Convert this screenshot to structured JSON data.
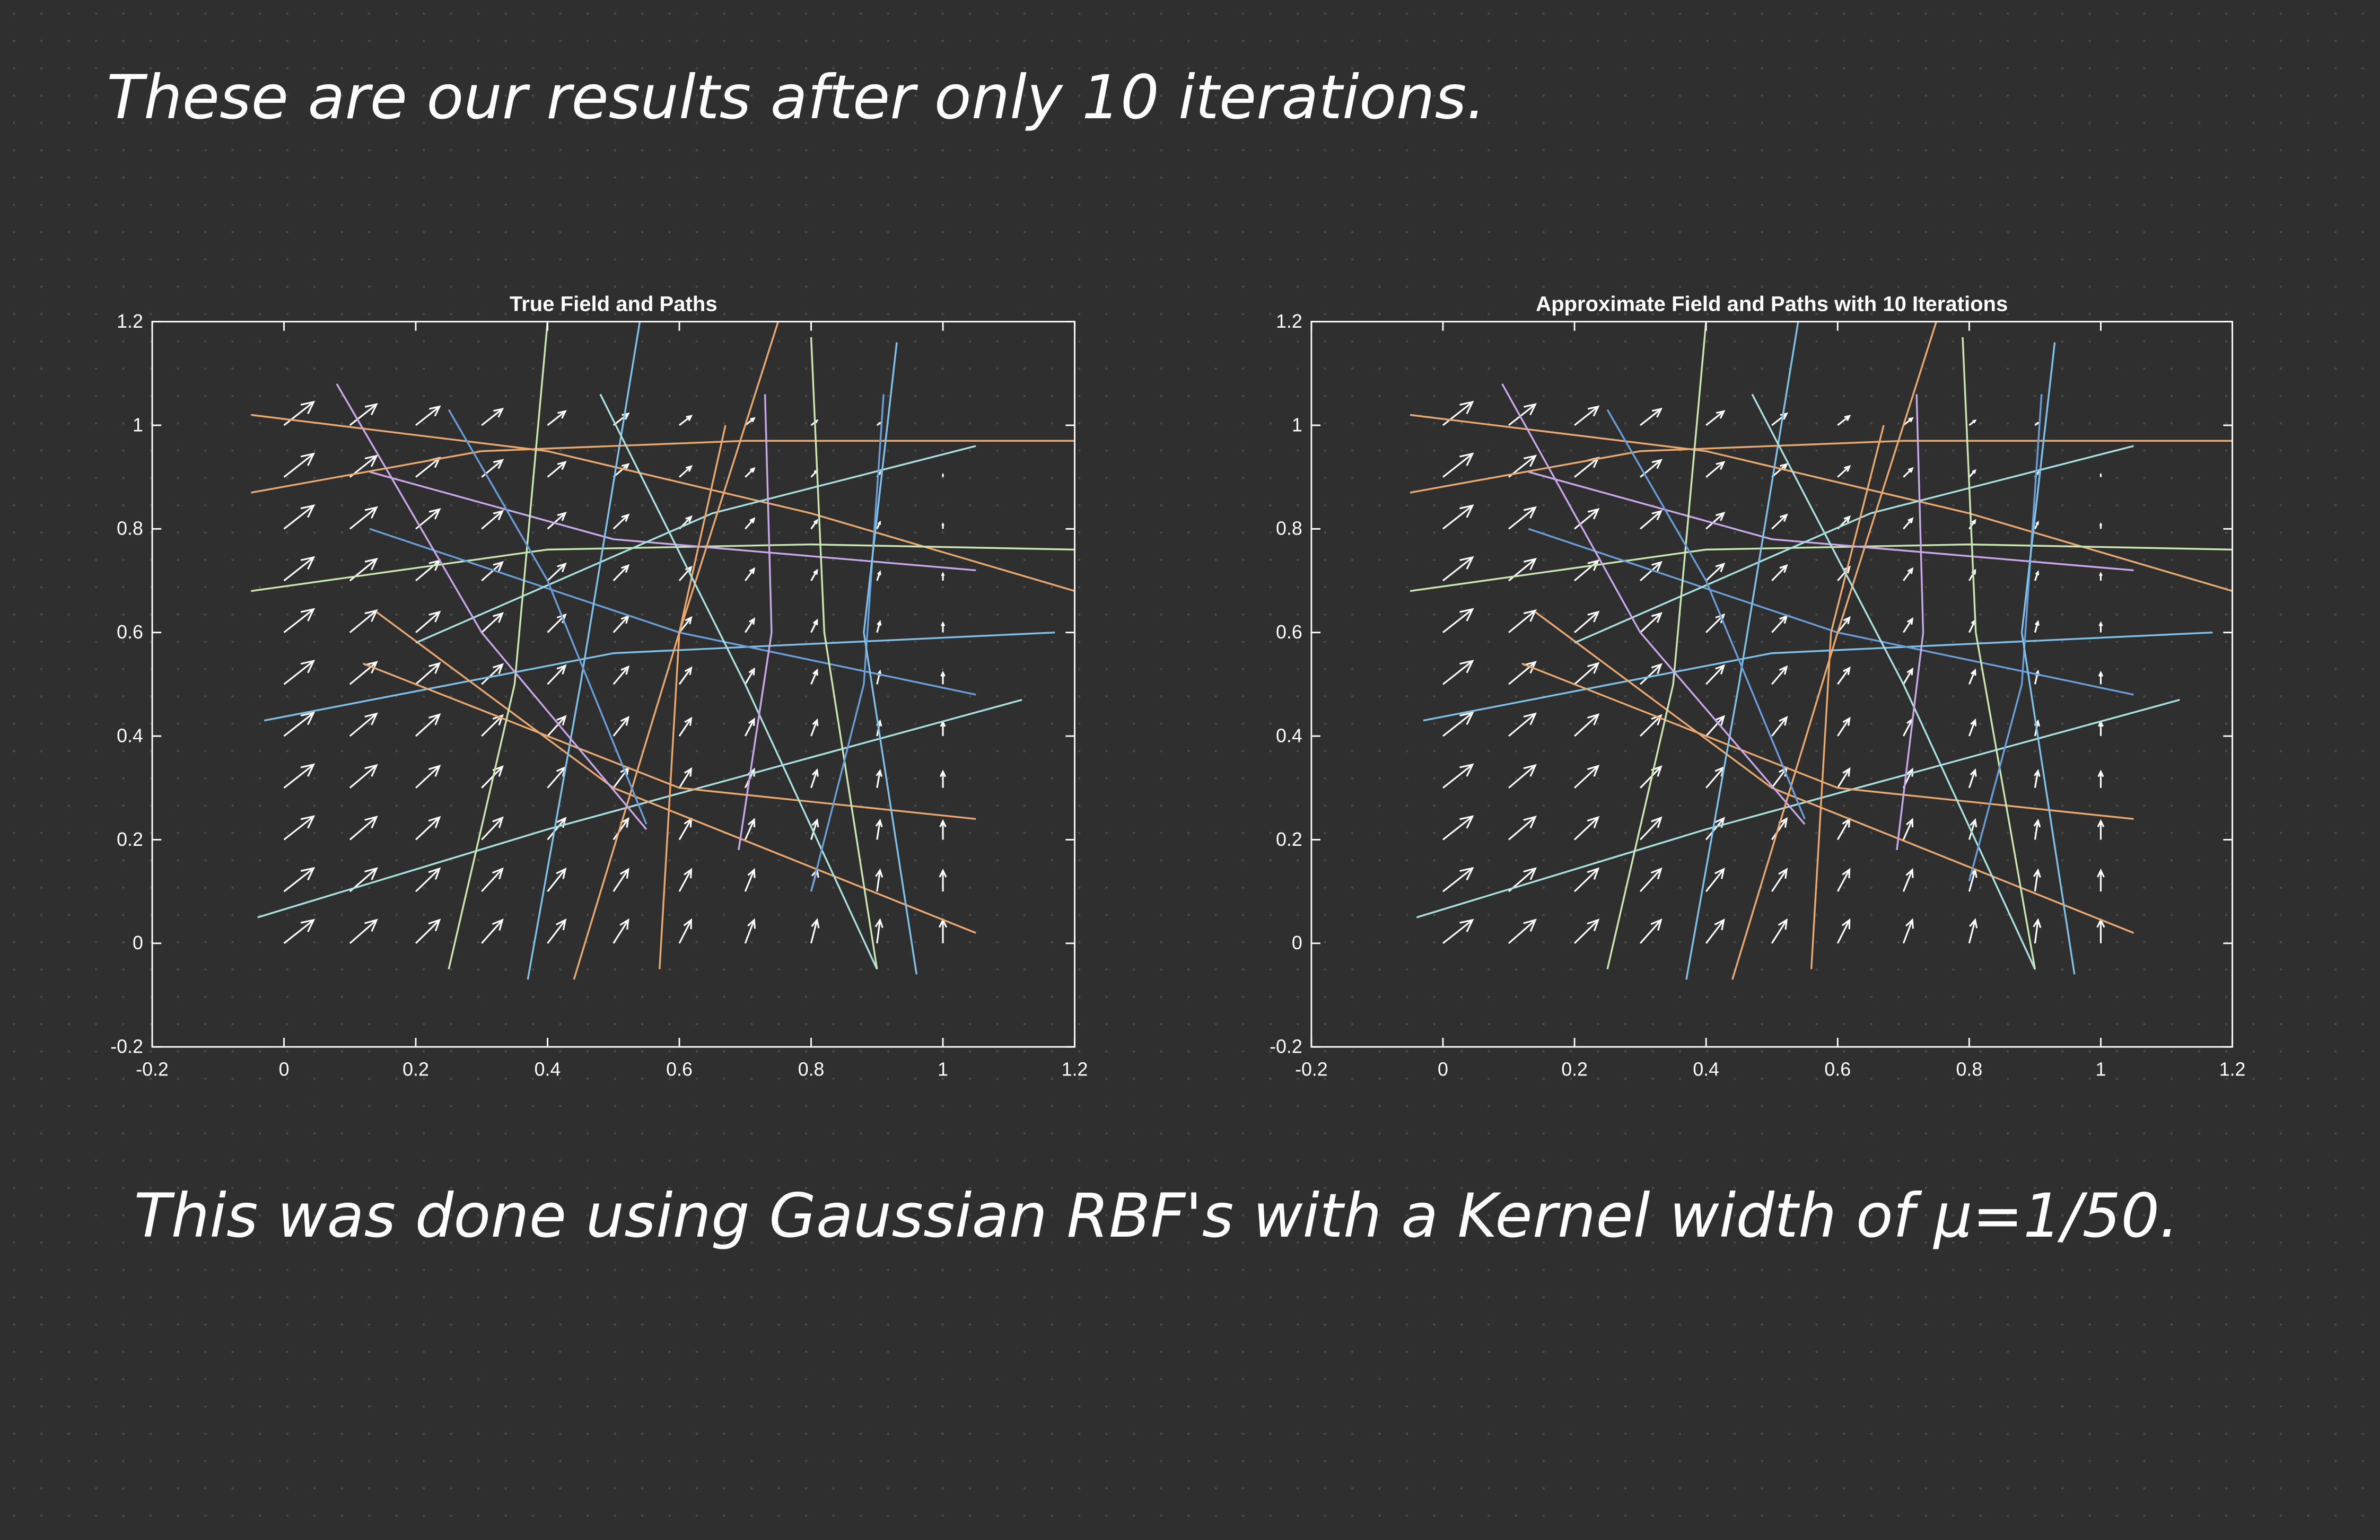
{
  "header": {
    "text": "These are our results after only 10 iterations."
  },
  "footer": {
    "text": "This was done using Gaussian RBF's with a Kernel width of μ=1/50."
  },
  "chart_data": [
    {
      "type": "quiver",
      "title": "True Field and Paths",
      "xlim": [
        -0.2,
        1.2
      ],
      "ylim": [
        -0.2,
        1.2
      ],
      "xticks": [
        -0.2,
        0,
        0.2,
        0.4,
        0.6,
        0.8,
        1,
        1.2
      ],
      "yticks": [
        -0.2,
        0,
        0.2,
        0.4,
        0.6,
        0.8,
        1,
        1.2
      ],
      "field": {
        "color": "#ffffff",
        "x": [
          0,
          0.1,
          0.2,
          0.3,
          0.4,
          0.5,
          0.6,
          0.7,
          0.8,
          0.9,
          1
        ],
        "y": [
          0,
          0.1,
          0.2,
          0.3,
          0.4,
          0.5,
          0.6,
          0.7,
          0.8,
          0.9,
          1
        ],
        "u": [
          [
            10,
            9,
            8,
            7,
            6,
            5,
            4,
            3,
            2,
            1,
            0
          ],
          [
            10,
            9,
            8,
            7,
            6,
            5,
            4,
            3,
            2,
            1,
            0
          ],
          [
            10,
            9,
            8,
            7,
            6,
            5,
            4,
            3,
            2,
            1,
            0
          ],
          [
            10,
            9,
            8,
            7,
            6,
            5,
            4,
            3,
            2,
            1,
            0
          ],
          [
            10,
            9,
            8,
            7,
            6,
            5,
            4,
            3,
            2,
            1,
            0
          ],
          [
            10,
            9,
            8,
            7,
            6,
            5,
            4,
            3,
            2,
            1,
            0
          ],
          [
            10,
            9,
            8,
            7,
            6,
            5,
            4,
            3,
            2,
            1,
            0
          ],
          [
            10,
            9,
            8,
            7,
            6,
            5,
            4,
            3,
            2,
            1,
            0
          ],
          [
            10,
            9,
            8,
            7,
            6,
            5,
            4,
            3,
            2,
            1,
            0
          ],
          [
            10,
            9,
            8,
            7,
            6,
            5,
            4,
            3,
            2,
            1,
            0
          ],
          [
            10,
            9,
            8,
            7,
            6,
            5,
            4,
            3,
            2,
            1,
            0
          ]
        ],
        "v": [
          [
            10,
            10,
            10,
            10,
            10,
            10,
            10,
            10,
            10,
            10,
            10
          ],
          [
            10,
            9.9,
            9.8,
            9.7,
            9.6,
            9.5,
            9.4,
            9.3,
            9.2,
            9.1,
            9
          ],
          [
            10,
            9.8,
            9.6,
            9.4,
            9.2,
            9,
            8.8,
            8.6,
            8.4,
            8.2,
            8
          ],
          [
            10,
            9.7,
            9.4,
            9.1,
            8.8,
            8.5,
            8.2,
            7.9,
            7.6,
            7.3,
            7
          ],
          [
            10,
            9.6,
            9.2,
            8.8,
            8.4,
            8,
            7.6,
            7.2,
            6.8,
            6.4,
            6
          ],
          [
            10,
            9.5,
            9,
            8.5,
            8,
            7.5,
            7,
            6.5,
            6,
            5.5,
            5
          ],
          [
            10,
            9.4,
            8.8,
            8.2,
            7.6,
            7,
            6.4,
            5.8,
            5.2,
            4.6,
            4
          ],
          [
            10,
            9.3,
            8.6,
            7.9,
            7.2,
            6.5,
            5.8,
            5.1,
            4.4,
            3.7,
            3
          ],
          [
            10,
            9.2,
            8.4,
            7.6,
            6.8,
            6,
            5.2,
            4.4,
            3.6,
            2.8,
            2
          ],
          [
            10,
            9.1,
            8.2,
            7.3,
            6.4,
            5.5,
            4.6,
            3.7,
            2.8,
            1.9,
            1
          ],
          [
            10,
            9,
            8,
            7,
            6,
            5,
            4,
            3,
            2,
            1,
            0
          ]
        ]
      },
      "series": [
        {
          "color": "#e8a870",
          "x": [
            -0.05,
            0.4,
            0.8,
            1.2
          ],
          "y": [
            1.02,
            0.95,
            0.83,
            0.68
          ]
        },
        {
          "color": "#e8a870",
          "x": [
            -0.05,
            0.3,
            0.7,
            1.2
          ],
          "y": [
            0.87,
            0.95,
            0.97,
            0.97
          ]
        },
        {
          "color": "#c8e6b0",
          "x": [
            -0.05,
            0.4,
            0.8,
            1.2
          ],
          "y": [
            0.68,
            0.76,
            0.77,
            0.76
          ]
        },
        {
          "color": "#c8a8e8",
          "x": [
            0.13,
            0.5,
            1.05
          ],
          "y": [
            0.91,
            0.78,
            0.72
          ]
        },
        {
          "color": "#7fc0e8",
          "x": [
            -0.03,
            0.5,
            1.17
          ],
          "y": [
            0.43,
            0.56,
            0.6
          ]
        },
        {
          "color": "#6a9ed8",
          "x": [
            0.13,
            0.6,
            1.05
          ],
          "y": [
            0.8,
            0.6,
            0.48
          ]
        },
        {
          "color": "#a8e0e0",
          "x": [
            -0.04,
            0.4,
            1.12
          ],
          "y": [
            0.05,
            0.22,
            0.47
          ]
        },
        {
          "color": "#e8a870",
          "x": [
            0.12,
            0.6,
            1.05
          ],
          "y": [
            0.54,
            0.3,
            0.24
          ]
        },
        {
          "color": "#e8a870",
          "x": [
            0.14,
            0.5,
            1.05
          ],
          "y": [
            0.64,
            0.3,
            0.02
          ]
        },
        {
          "color": "#a8e0e0",
          "x": [
            0.2,
            0.65,
            1.05
          ],
          "y": [
            0.58,
            0.83,
            0.96
          ]
        },
        {
          "color": "#c8e6b0",
          "x": [
            0.25,
            0.35,
            0.4
          ],
          "y": [
            -0.05,
            0.5,
            1.2
          ]
        },
        {
          "color": "#7fc0e8",
          "x": [
            0.37,
            0.45,
            0.54
          ],
          "y": [
            -0.07,
            0.5,
            1.2
          ]
        },
        {
          "color": "#e8a870",
          "x": [
            0.44,
            0.6,
            0.75
          ],
          "y": [
            -0.07,
            0.6,
            1.2
          ]
        },
        {
          "color": "#e8a870",
          "x": [
            0.57,
            0.6,
            0.67
          ],
          "y": [
            -0.05,
            0.6,
            1.0
          ]
        },
        {
          "color": "#c8a8e8",
          "x": [
            0.08,
            0.3,
            0.55
          ],
          "y": [
            1.08,
            0.6,
            0.22
          ]
        },
        {
          "color": "#6a9ed8",
          "x": [
            0.25,
            0.4,
            0.55
          ],
          "y": [
            1.03,
            0.7,
            0.23
          ]
        },
        {
          "color": "#a8e0e0",
          "x": [
            0.48,
            0.7,
            0.9
          ],
          "y": [
            1.06,
            0.5,
            -0.05
          ]
        },
        {
          "color": "#c8a8e8",
          "x": [
            0.73,
            0.74,
            0.69
          ],
          "y": [
            1.06,
            0.6,
            0.18
          ]
        },
        {
          "color": "#c8e6b0",
          "x": [
            0.8,
            0.82,
            0.9
          ],
          "y": [
            1.17,
            0.6,
            -0.05
          ]
        },
        {
          "color": "#6a9ed8",
          "x": [
            0.91,
            0.88,
            0.8
          ],
          "y": [
            1.06,
            0.5,
            0.1
          ]
        },
        {
          "color": "#7fc0e8",
          "x": [
            0.93,
            0.88,
            0.96
          ],
          "y": [
            1.16,
            0.6,
            -0.06
          ]
        }
      ]
    },
    {
      "type": "quiver",
      "title": "Approximate Field and Paths with 10 Iterations",
      "xlim": [
        -0.2,
        1.2
      ],
      "ylim": [
        -0.2,
        1.2
      ],
      "xticks": [
        -0.2,
        0,
        0.2,
        0.4,
        0.6,
        0.8,
        1,
        1.2
      ],
      "yticks": [
        -0.2,
        0,
        0.2,
        0.4,
        0.6,
        0.8,
        1,
        1.2
      ],
      "field": {
        "color": "#ffffff",
        "x": [
          0,
          0.1,
          0.2,
          0.3,
          0.4,
          0.5,
          0.6,
          0.7,
          0.8,
          0.9,
          1
        ],
        "y": [
          0,
          0.1,
          0.2,
          0.3,
          0.4,
          0.5,
          0.6,
          0.7,
          0.8,
          0.9,
          1
        ],
        "u": [
          [
            10,
            9,
            8,
            7,
            6,
            5,
            4,
            3,
            2,
            1,
            0
          ],
          [
            10,
            9,
            8,
            7,
            6,
            5,
            4,
            3,
            2,
            1,
            0
          ],
          [
            10,
            9,
            8,
            7,
            6,
            5,
            4,
            3,
            2,
            1,
            0
          ],
          [
            10,
            9,
            8,
            7,
            6,
            5,
            4,
            3,
            2,
            1,
            0
          ],
          [
            10,
            9,
            8,
            7,
            6,
            5,
            4,
            3,
            2,
            1,
            0
          ],
          [
            10,
            9,
            8,
            7,
            6,
            5,
            4,
            3,
            2,
            1,
            0
          ],
          [
            10,
            9,
            8,
            7,
            6,
            5,
            4,
            3,
            2,
            1,
            0
          ],
          [
            10,
            9,
            8,
            7,
            6,
            5,
            4,
            3,
            2,
            1,
            0
          ],
          [
            10,
            9,
            8,
            7,
            6,
            5,
            4,
            3,
            2,
            1,
            0
          ],
          [
            10,
            9,
            8,
            7,
            6,
            5,
            4,
            3,
            2,
            1,
            0
          ],
          [
            10,
            9,
            8,
            7,
            6,
            5,
            4,
            3,
            2,
            1,
            0
          ]
        ],
        "v": [
          [
            10,
            10,
            10,
            10,
            10,
            10,
            10,
            10,
            10,
            10,
            10
          ],
          [
            10,
            9.9,
            9.8,
            9.7,
            9.6,
            9.5,
            9.4,
            9.3,
            9.2,
            9.1,
            9
          ],
          [
            10,
            9.8,
            9.6,
            9.4,
            9.2,
            9,
            8.8,
            8.6,
            8.4,
            8.2,
            8
          ],
          [
            10,
            9.7,
            9.4,
            9.1,
            8.8,
            8.5,
            8.2,
            7.9,
            7.6,
            7.3,
            7
          ],
          [
            10,
            9.6,
            9.2,
            8.8,
            8.4,
            8,
            7.6,
            7.2,
            6.8,
            6.4,
            6
          ],
          [
            10,
            9.5,
            9,
            8.5,
            8,
            7.5,
            7,
            6.5,
            6,
            5.5,
            5
          ],
          [
            10,
            9.4,
            8.8,
            8.2,
            7.6,
            7,
            6.4,
            5.8,
            5.2,
            4.6,
            4
          ],
          [
            10,
            9.3,
            8.6,
            7.9,
            7.2,
            6.5,
            5.8,
            5.1,
            4.4,
            3.7,
            3
          ],
          [
            10,
            9.2,
            8.4,
            7.6,
            6.8,
            6,
            5.2,
            4.4,
            3.6,
            2.8,
            2
          ],
          [
            10,
            9.1,
            8.2,
            7.3,
            6.4,
            5.5,
            4.6,
            3.7,
            2.8,
            1.9,
            1
          ],
          [
            10,
            9,
            8,
            7,
            6,
            5,
            4,
            3,
            2,
            1,
            0
          ]
        ]
      },
      "series": [
        {
          "color": "#e8a870",
          "x": [
            -0.05,
            0.4,
            0.8,
            1.2
          ],
          "y": [
            1.02,
            0.95,
            0.83,
            0.68
          ]
        },
        {
          "color": "#e8a870",
          "x": [
            -0.05,
            0.3,
            0.7,
            1.2
          ],
          "y": [
            0.87,
            0.95,
            0.97,
            0.97
          ]
        },
        {
          "color": "#c8e6b0",
          "x": [
            -0.05,
            0.4,
            0.8,
            1.2
          ],
          "y": [
            0.68,
            0.76,
            0.77,
            0.76
          ]
        },
        {
          "color": "#c8a8e8",
          "x": [
            0.13,
            0.5,
            1.05
          ],
          "y": [
            0.91,
            0.78,
            0.72
          ]
        },
        {
          "color": "#7fc0e8",
          "x": [
            -0.03,
            0.5,
            1.17
          ],
          "y": [
            0.43,
            0.56,
            0.6
          ]
        },
        {
          "color": "#6a9ed8",
          "x": [
            0.13,
            0.6,
            1.05
          ],
          "y": [
            0.8,
            0.6,
            0.48
          ]
        },
        {
          "color": "#a8e0e0",
          "x": [
            -0.04,
            0.4,
            1.12
          ],
          "y": [
            0.05,
            0.22,
            0.47
          ]
        },
        {
          "color": "#e8a870",
          "x": [
            0.12,
            0.6,
            1.05
          ],
          "y": [
            0.54,
            0.3,
            0.24
          ]
        },
        {
          "color": "#e8a870",
          "x": [
            0.14,
            0.5,
            1.05
          ],
          "y": [
            0.64,
            0.3,
            0.02
          ]
        },
        {
          "color": "#a8e0e0",
          "x": [
            0.2,
            0.65,
            1.05
          ],
          "y": [
            0.58,
            0.83,
            0.96
          ]
        },
        {
          "color": "#c8e6b0",
          "x": [
            0.25,
            0.35,
            0.4
          ],
          "y": [
            -0.05,
            0.5,
            1.2
          ]
        },
        {
          "color": "#7fc0e8",
          "x": [
            0.37,
            0.45,
            0.54
          ],
          "y": [
            -0.07,
            0.5,
            1.2
          ]
        },
        {
          "color": "#e8a870",
          "x": [
            0.44,
            0.6,
            0.75
          ],
          "y": [
            -0.07,
            0.6,
            1.2
          ]
        },
        {
          "color": "#e8a870",
          "x": [
            0.56,
            0.59,
            0.67
          ],
          "y": [
            -0.05,
            0.6,
            1.0
          ]
        },
        {
          "color": "#c8a8e8",
          "x": [
            0.09,
            0.3,
            0.55
          ],
          "y": [
            1.08,
            0.6,
            0.23
          ]
        },
        {
          "color": "#6a9ed8",
          "x": [
            0.25,
            0.4,
            0.55
          ],
          "y": [
            1.03,
            0.7,
            0.24
          ]
        },
        {
          "color": "#a8e0e0",
          "x": [
            0.47,
            0.7,
            0.9
          ],
          "y": [
            1.06,
            0.5,
            -0.05
          ]
        },
        {
          "color": "#c8a8e8",
          "x": [
            0.72,
            0.73,
            0.69
          ],
          "y": [
            1.06,
            0.6,
            0.18
          ]
        },
        {
          "color": "#c8e6b0",
          "x": [
            0.79,
            0.81,
            0.9
          ],
          "y": [
            1.17,
            0.6,
            -0.05
          ]
        },
        {
          "color": "#6a9ed8",
          "x": [
            0.91,
            0.88,
            0.8
          ],
          "y": [
            1.06,
            0.5,
            0.12
          ]
        },
        {
          "color": "#7fc0e8",
          "x": [
            0.93,
            0.88,
            0.96
          ],
          "y": [
            1.16,
            0.6,
            -0.06
          ]
        }
      ]
    }
  ]
}
